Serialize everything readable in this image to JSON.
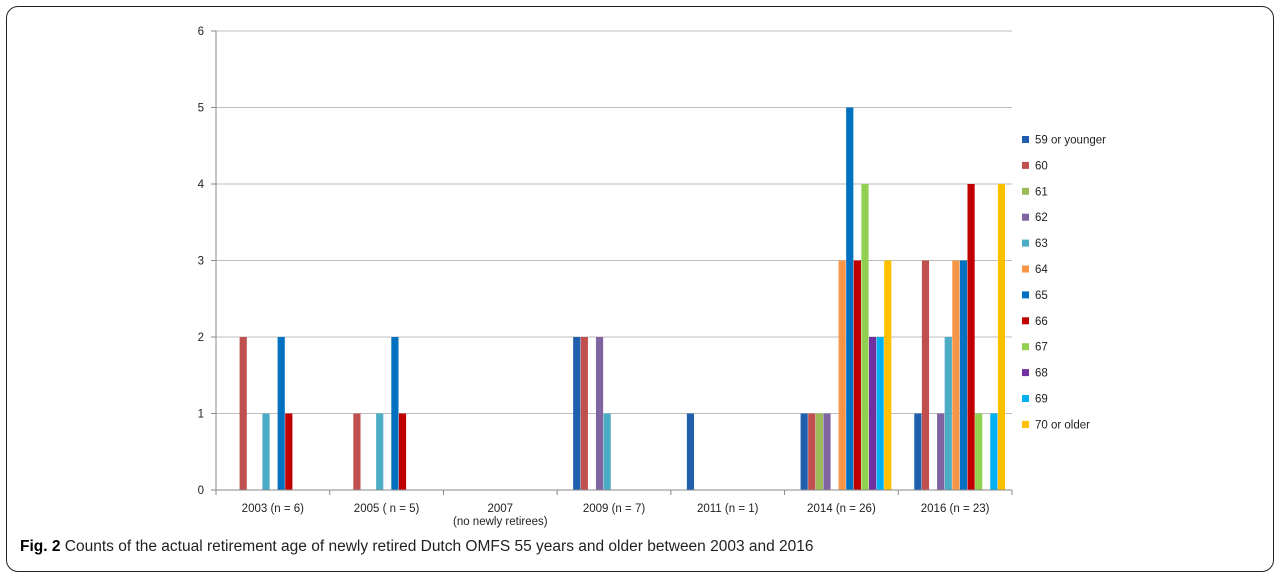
{
  "caption": {
    "label": "Fig. 2",
    "text": "Counts of the actual retirement age of newly retired Dutch OMFS 55 years and older between 2003 and 2016"
  },
  "chart_data": {
    "type": "bar",
    "title": "",
    "xlabel": "",
    "ylabel": "",
    "ylim": [
      0,
      6
    ],
    "yticks": [
      0,
      1,
      2,
      3,
      4,
      5,
      6
    ],
    "grid": true,
    "legend_position": "right",
    "categories": [
      [
        "2003 (n = 6)"
      ],
      [
        "2005 ( n = 5)"
      ],
      [
        "2007",
        "(no newly retirees)"
      ],
      [
        "2009 (n = 7)"
      ],
      [
        "2011 (n = 1)"
      ],
      [
        "2014 (n = 26)"
      ],
      [
        "2016 (n = 23)"
      ]
    ],
    "series": [
      {
        "name": "59 or younger",
        "color": "#1f5fae",
        "values": [
          0,
          0,
          0,
          2,
          1,
          1,
          1
        ]
      },
      {
        "name": "60",
        "color": "#c0504d",
        "values": [
          2,
          1,
          0,
          2,
          0,
          1,
          3
        ]
      },
      {
        "name": "61",
        "color": "#9bbb59",
        "values": [
          0,
          0,
          0,
          0,
          0,
          1,
          0
        ]
      },
      {
        "name": "62",
        "color": "#8064a2",
        "values": [
          0,
          0,
          0,
          2,
          0,
          1,
          1
        ]
      },
      {
        "name": "63",
        "color": "#4bacc6",
        "values": [
          1,
          1,
          0,
          1,
          0,
          0,
          2
        ]
      },
      {
        "name": "64",
        "color": "#f79646",
        "values": [
          0,
          0,
          0,
          0,
          0,
          3,
          3
        ]
      },
      {
        "name": "65",
        "color": "#0070c0",
        "values": [
          2,
          2,
          0,
          0,
          0,
          5,
          3
        ]
      },
      {
        "name": "66",
        "color": "#c00000",
        "values": [
          1,
          1,
          0,
          0,
          0,
          3,
          4
        ]
      },
      {
        "name": "67",
        "color": "#92d050",
        "values": [
          0,
          0,
          0,
          0,
          0,
          4,
          1
        ]
      },
      {
        "name": "68",
        "color": "#7030a0",
        "values": [
          0,
          0,
          0,
          0,
          0,
          2,
          0
        ]
      },
      {
        "name": "69",
        "color": "#00b0f0",
        "values": [
          0,
          0,
          0,
          0,
          0,
          2,
          1
        ]
      },
      {
        "name": "70 or older",
        "color": "#ffc000",
        "values": [
          0,
          0,
          0,
          0,
          0,
          3,
          4
        ]
      }
    ]
  }
}
